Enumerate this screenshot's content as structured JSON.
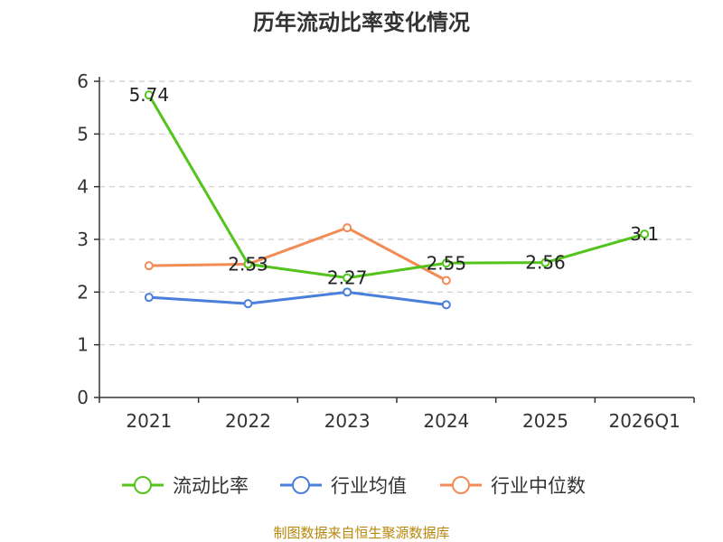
{
  "chart_data": {
    "type": "line",
    "title": "历年流动比率变化情况",
    "categories": [
      "2021",
      "2022",
      "2023",
      "2024",
      "2025",
      "2026Q1"
    ],
    "yticks": [
      "0",
      "1",
      "2",
      "3",
      "4",
      "5",
      "6"
    ],
    "ylim": [
      0,
      6
    ],
    "grid": true,
    "legend_position": "bottom",
    "series": [
      {
        "name": "流动比率",
        "color": "#52c41a",
        "values": [
          5.74,
          2.53,
          2.27,
          2.55,
          2.56,
          3.1
        ],
        "labels": [
          "5.74",
          "2.53",
          "2.27",
          "2.55",
          "2.56",
          "3.1"
        ]
      },
      {
        "name": "行业均值",
        "color": "#4a7fdc",
        "values": [
          1.9,
          1.78,
          2.0,
          1.76,
          null,
          null
        ],
        "labels": []
      },
      {
        "name": "行业中位数",
        "color": "#f28b54",
        "values": [
          2.5,
          2.53,
          3.22,
          2.22,
          null,
          null
        ],
        "labels": []
      }
    ],
    "source": "制图数据来自恒生聚源数据库"
  }
}
